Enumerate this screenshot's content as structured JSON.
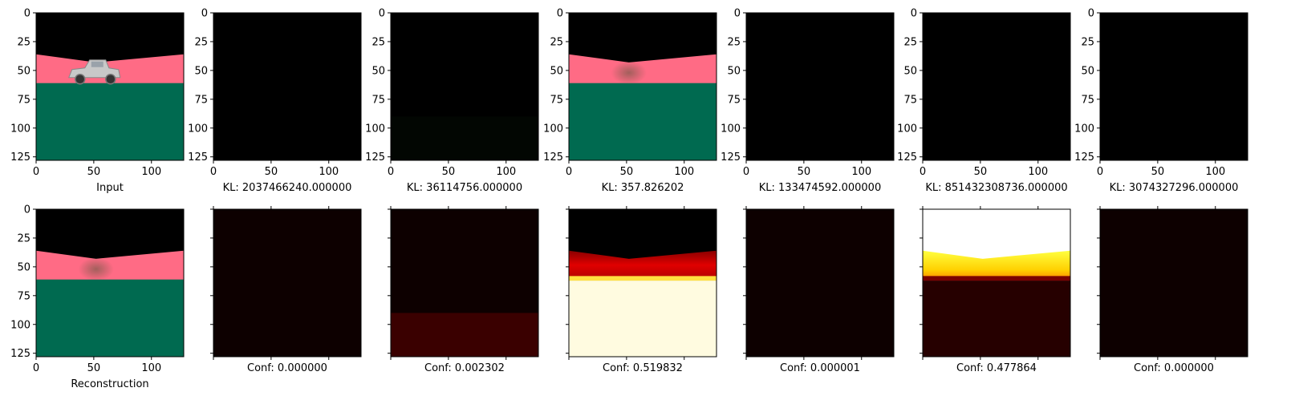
{
  "chart_data": [
    {
      "type": "image",
      "row": "top",
      "variant": "input",
      "xlabel": "Input",
      "xticks": [
        "0",
        "50",
        "100"
      ],
      "yticks": [
        "0",
        "25",
        "50",
        "75",
        "100",
        "125"
      ]
    },
    {
      "type": "image",
      "row": "top",
      "variant": "black",
      "xlabel": "KL: 2037466240.000000",
      "xticks": [
        "0",
        "50",
        "100"
      ],
      "yticks": [
        "0",
        "25",
        "50",
        "75",
        "100",
        "125"
      ]
    },
    {
      "type": "image",
      "row": "top",
      "variant": "black-faint",
      "xlabel": "KL: 36114756.000000",
      "xticks": [
        "0",
        "50",
        "100"
      ],
      "yticks": [
        "0",
        "25",
        "50",
        "75",
        "100",
        "125"
      ]
    },
    {
      "type": "image",
      "row": "top",
      "variant": "recon",
      "xlabel": "KL: 357.826202",
      "xticks": [
        "0",
        "50",
        "100"
      ],
      "yticks": [
        "0",
        "25",
        "50",
        "75",
        "100",
        "125"
      ]
    },
    {
      "type": "image",
      "row": "top",
      "variant": "black",
      "xlabel": "KL: 133474592.000000",
      "xticks": [
        "0",
        "50",
        "100"
      ],
      "yticks": [
        "0",
        "25",
        "50",
        "75",
        "100",
        "125"
      ]
    },
    {
      "type": "image",
      "row": "top",
      "variant": "black",
      "xlabel": "KL: 851432308736.000000",
      "xticks": [
        "0",
        "50",
        "100"
      ],
      "yticks": [
        "0",
        "25",
        "50",
        "75",
        "100",
        "125"
      ]
    },
    {
      "type": "image",
      "row": "top",
      "variant": "black",
      "xlabel": "KL: 3074327296.000000",
      "xticks": [
        "0",
        "50",
        "100"
      ],
      "yticks": [
        "0",
        "25",
        "50",
        "75",
        "100",
        "125"
      ]
    },
    {
      "type": "image",
      "row": "bottom",
      "variant": "recon",
      "xlabel": "Reconstruction",
      "xticks": [
        "0",
        "50",
        "100"
      ],
      "yticks": [
        "0",
        "25",
        "50",
        "75",
        "100",
        "125"
      ]
    },
    {
      "type": "heatmap",
      "row": "bottom",
      "variant": "dark",
      "xlabel": "Conf: 0.000000",
      "xticks": [],
      "yticks": []
    },
    {
      "type": "heatmap",
      "row": "bottom",
      "variant": "dark-lowband",
      "xlabel": "Conf: 0.002302",
      "xticks": [],
      "yticks": []
    },
    {
      "type": "heatmap",
      "row": "bottom",
      "variant": "hot-bright",
      "xlabel": "Conf: 0.519832",
      "xticks": [],
      "yticks": []
    },
    {
      "type": "heatmap",
      "row": "bottom",
      "variant": "dark",
      "xlabel": "Conf: 0.000001",
      "xticks": [],
      "yticks": []
    },
    {
      "type": "heatmap",
      "row": "bottom",
      "variant": "hot-inverse",
      "xlabel": "Conf: 0.477864",
      "xticks": [],
      "yticks": []
    },
    {
      "type": "heatmap",
      "row": "bottom",
      "variant": "dark",
      "xlabel": "Conf: 0.000000",
      "xticks": [],
      "yticks": []
    }
  ],
  "axis": {
    "xlim": [
      0,
      128
    ],
    "ylim": [
      128,
      0
    ],
    "xtick_values": [
      0,
      50,
      100
    ],
    "ytick_values": [
      0,
      25,
      50,
      75,
      100,
      125
    ]
  },
  "colors": {
    "pink": "#ff6b85",
    "green": "#006a50",
    "black": "#000000",
    "darkhot": "#0d0000",
    "hotred": "#d00000",
    "hotyellow": "#ffee30",
    "hotwhite": "#fffbe0"
  }
}
